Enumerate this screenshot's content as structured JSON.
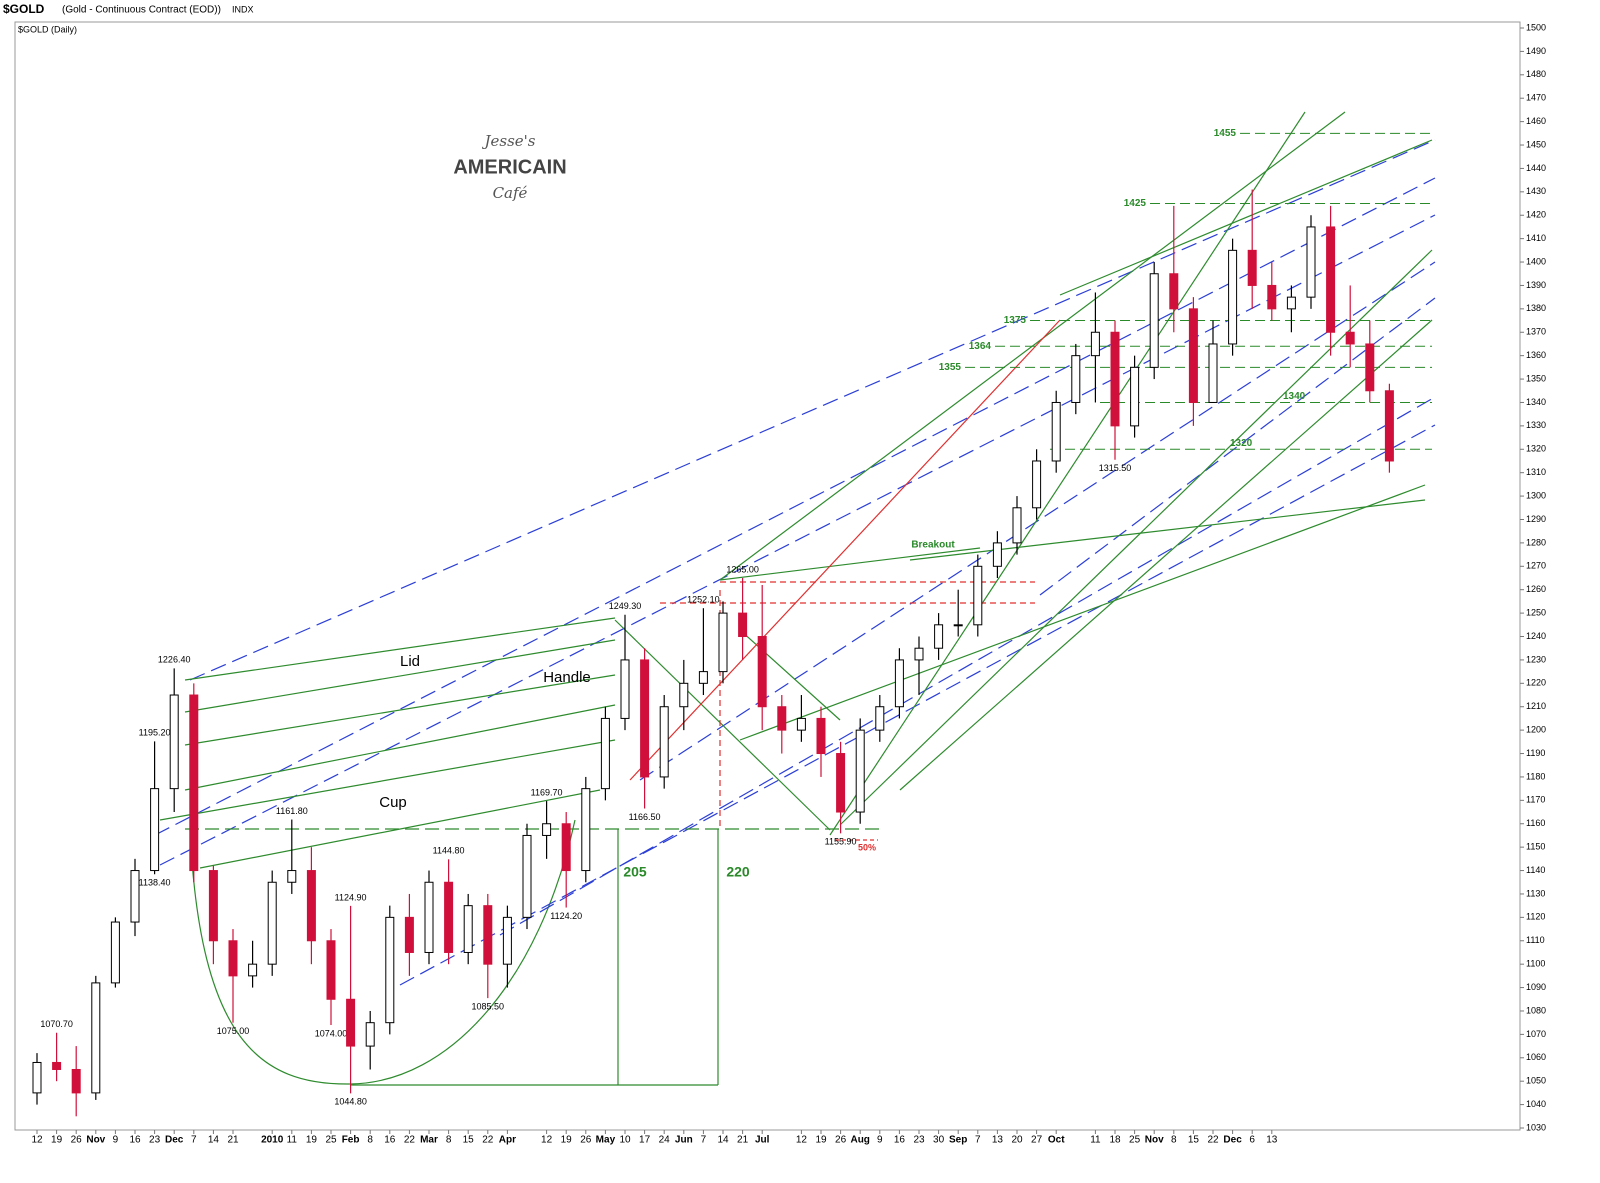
{
  "header": {
    "title": "$GOLD",
    "subtitle": "(Gold - Continuous Contract (EOD))",
    "exchange": "INDX",
    "chart_label": "$GOLD (Daily)"
  },
  "logo": {
    "line1": "Jesse's",
    "line2": "AMERICAIN",
    "line3": "Café"
  },
  "chart_data": {
    "type": "candlestick",
    "categories": [
      "12",
      "19",
      "26",
      "Nov",
      "9",
      "16",
      "23",
      "Dec",
      "7",
      "14",
      "21",
      null,
      "2010",
      "11",
      "19",
      "25",
      "Feb",
      "8",
      "16",
      "22",
      "Mar",
      "8",
      "15",
      "22",
      "Apr",
      null,
      "12",
      "19",
      "26",
      "May",
      "10",
      "17",
      "24",
      "Jun",
      "7",
      "14",
      "21",
      "Jul",
      null,
      "12",
      "19",
      "26",
      "Aug",
      "9",
      "16",
      "23",
      "30",
      "Sep",
      "7",
      "13",
      "20",
      "27",
      "Oct",
      null,
      "11",
      "18",
      "25",
      "Nov",
      "8",
      "15",
      "22",
      "Dec",
      "6",
      "13",
      null,
      null,
      null,
      null,
      null,
      null
    ],
    "open": [
      1045,
      1058,
      1055,
      1045,
      1092,
      1118,
      1140,
      1175,
      1215,
      1140,
      1110,
      1095,
      1100,
      1135,
      1140,
      1110,
      1085,
      1065,
      1075,
      1120,
      1105,
      1135,
      1105,
      1125,
      1100,
      1120,
      1155,
      1160,
      1140,
      1175,
      1205,
      1230,
      1180,
      1210,
      1220,
      1225,
      1250,
      1240,
      1210,
      1200,
      1205,
      1190,
      1165,
      1200,
      1210,
      1230,
      1235,
      1245,
      1245,
      1270,
      1280,
      1295,
      1315,
      1340,
      1360,
      1370,
      1330,
      1355,
      1395,
      1380,
      1340,
      1365,
      1405,
      1390,
      1380,
      1385,
      1415,
      1370,
      1365,
      1345
    ],
    "high": [
      1062,
      1070.7,
      1065,
      1095,
      1120,
      1145,
      1195.2,
      1226.4,
      1220,
      1142,
      1115,
      1110,
      1140,
      1161.8,
      1150,
      1115,
      1124.9,
      1080,
      1125,
      1130,
      1140,
      1144.8,
      1130,
      1130,
      1125,
      1160,
      1169.7,
      1165,
      1180,
      1210,
      1249.3,
      1235,
      1215,
      1230,
      1252.1,
      1255,
      1265,
      1262,
      1215,
      1215,
      1210,
      1195,
      1205,
      1215,
      1235,
      1240,
      1250,
      1260,
      1275,
      1285,
      1300,
      1320,
      1345,
      1365,
      1387,
      1375,
      1360,
      1400,
      1424,
      1385,
      1375,
      1410,
      1431,
      1400,
      1390,
      1420,
      1424,
      1390,
      1375,
      1348
    ],
    "low": [
      1040,
      1050,
      1035,
      1042,
      1090,
      1112,
      1138.4,
      1165,
      1135,
      1100,
      1075,
      1090,
      1095,
      1130,
      1100,
      1074,
      1044.8,
      1055,
      1070,
      1095,
      1100,
      1100,
      1100,
      1085.5,
      1090,
      1115,
      1145,
      1124.2,
      1135,
      1170,
      1200,
      1166.5,
      1175,
      1200,
      1215,
      1220,
      1230,
      1200,
      1190,
      1195,
      1180,
      1155.9,
      1160,
      1195,
      1205,
      1215,
      1230,
      1240,
      1240,
      1265,
      1275,
      1290,
      1310,
      1335,
      1340,
      1315.5,
      1325,
      1350,
      1370,
      1330,
      1340,
      1360,
      1380,
      1375,
      1370,
      1380,
      1360,
      1355,
      1340,
      1310
    ],
    "close": [
      1058,
      1055,
      1045,
      1092,
      1118,
      1140,
      1175,
      1215,
      1140,
      1110,
      1095,
      1100,
      1135,
      1140,
      1110,
      1085,
      1065,
      1075,
      1120,
      1105,
      1135,
      1105,
      1125,
      1100,
      1120,
      1155,
      1160,
      1140,
      1175,
      1205,
      1230,
      1180,
      1210,
      1220,
      1225,
      1250,
      1240,
      1210,
      1200,
      1205,
      1190,
      1165,
      1200,
      1210,
      1230,
      1235,
      1245,
      1245,
      1270,
      1280,
      1295,
      1315,
      1340,
      1360,
      1370,
      1330,
      1355,
      1395,
      1380,
      1340,
      1365,
      1405,
      1390,
      1380,
      1385,
      1415,
      1370,
      1365,
      1345,
      1315
    ],
    "high_labels": [
      null,
      "1070.70",
      null,
      null,
      null,
      null,
      "1195.20",
      "1226.40",
      null,
      null,
      null,
      null,
      null,
      "1161.80",
      null,
      null,
      "1124.90",
      null,
      null,
      null,
      null,
      "1144.80",
      null,
      null,
      null,
      null,
      "1169.70",
      null,
      null,
      null,
      "1249.30",
      null,
      null,
      null,
      "1252.10",
      null,
      "1265.00",
      null,
      null,
      null,
      null,
      null,
      null,
      null,
      null,
      null,
      null,
      null,
      null,
      null,
      null,
      null,
      null,
      null,
      null,
      null,
      null,
      null,
      null,
      null,
      null,
      null,
      null,
      null,
      null,
      null,
      null,
      null,
      null,
      null
    ],
    "low_labels": [
      null,
      null,
      null,
      null,
      null,
      null,
      "1138.40",
      null,
      null,
      null,
      "1075.00",
      null,
      null,
      null,
      null,
      "1074.00",
      "1044.80",
      null,
      null,
      null,
      null,
      null,
      null,
      "1085.50",
      null,
      null,
      null,
      "1124.20",
      null,
      null,
      null,
      "1166.50",
      null,
      null,
      null,
      null,
      null,
      null,
      null,
      null,
      null,
      "1155.90",
      null,
      null,
      null,
      null,
      null,
      null,
      null,
      null,
      null,
      null,
      null,
      null,
      null,
      "1315.50",
      null,
      null,
      null,
      null,
      null,
      null,
      null,
      null,
      null,
      null,
      null,
      null,
      null,
      null
    ],
    "ylim": [
      1030,
      1500
    ],
    "yticks": [
      1030,
      1040,
      1050,
      1060,
      1070,
      1080,
      1090,
      1100,
      1110,
      1120,
      1130,
      1140,
      1150,
      1160,
      1170,
      1180,
      1190,
      1200,
      1210,
      1220,
      1230,
      1240,
      1250,
      1260,
      1270,
      1280,
      1290,
      1300,
      1310,
      1320,
      1330,
      1340,
      1350,
      1360,
      1370,
      1380,
      1390,
      1400,
      1410,
      1420,
      1430,
      1440,
      1450,
      1460,
      1470,
      1480,
      1490,
      1500
    ],
    "up_color": "#ffffff",
    "down_color": "#d0103a",
    "level_color": "#2a8a2a",
    "levels": [
      1455,
      1425,
      1375,
      1364,
      1355,
      1340,
      1320
    ],
    "annotations": {
      "lid": "Lid",
      "handle": "Handle",
      "cup": "Cup",
      "span1": 205,
      "span2": 220,
      "breakout": "Breakout",
      "fib": "50%"
    }
  }
}
